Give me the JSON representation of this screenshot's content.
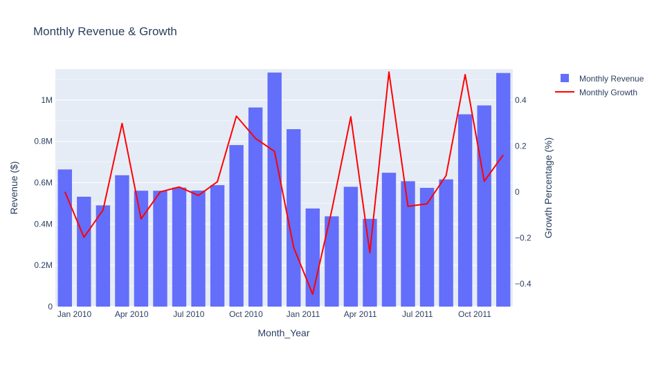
{
  "chart_data": {
    "type": "bar",
    "title": "Monthly Revenue & Growth",
    "xlabel": "Month_Year",
    "ylabel": "Revenue ($)",
    "y2label": "Growth Percentage (%)",
    "x": [
      "2009-12",
      "2010-01",
      "2010-02",
      "2010-03",
      "2010-04",
      "2010-05",
      "2010-06",
      "2010-07",
      "2010-08",
      "2010-09",
      "2010-10",
      "2010-11",
      "2010-12",
      "2011-01",
      "2011-02",
      "2011-03",
      "2011-04",
      "2011-05",
      "2011-06",
      "2011-07",
      "2011-08",
      "2011-09",
      "2011-10",
      "2011-11"
    ],
    "x_tick_labels": [
      {
        "x": "2010-01",
        "label": "Jan 2010"
      },
      {
        "x": "2010-04",
        "label": "Apr 2010"
      },
      {
        "x": "2010-07",
        "label": "Jul 2010"
      },
      {
        "x": "2010-10",
        "label": "Oct 2010"
      },
      {
        "x": "2011-01",
        "label": "Jan 2011"
      },
      {
        "x": "2011-04",
        "label": "Apr 2011"
      },
      {
        "x": "2011-07",
        "label": "Jul 2011"
      },
      {
        "x": "2011-10",
        "label": "Oct 2011"
      }
    ],
    "ylim": [
      0,
      1150000
    ],
    "y_ticks": [
      0,
      200000,
      400000,
      600000,
      800000,
      1000000
    ],
    "y_tick_labels": [
      "0",
      "0.2M",
      "0.4M",
      "0.6M",
      "0.8M",
      "1M"
    ],
    "y2lim": [
      -0.5,
      0.535
    ],
    "y2_ticks": [
      -0.4,
      -0.2,
      0,
      0.2,
      0.4
    ],
    "y2_tick_labels": [
      "−0.4",
      "−0.2",
      "0",
      "0.2",
      "0.4"
    ],
    "grid": true,
    "legend_position": "top-right",
    "series": [
      {
        "name": "Monthly Revenue",
        "type": "bar",
        "axis": "y",
        "color": "#636efa",
        "values": [
          664000,
          532000,
          490000,
          636000,
          561000,
          561000,
          576000,
          562000,
          588000,
          782000,
          964000,
          1133000,
          859000,
          475000,
          437000,
          580000,
          425000,
          648000,
          607000,
          575000,
          616000,
          931000,
          974000,
          1131000
        ]
      },
      {
        "name": "Monthly Growth",
        "type": "line",
        "axis": "y2",
        "color": "#ff0000",
        "values": [
          0,
          -0.198,
          -0.079,
          0.298,
          -0.118,
          0.0,
          0.021,
          -0.016,
          0.044,
          0.33,
          0.233,
          0.176,
          -0.242,
          -0.446,
          -0.08,
          0.327,
          -0.265,
          0.522,
          -0.063,
          -0.052,
          0.071,
          0.511,
          0.046,
          0.161
        ]
      }
    ]
  }
}
